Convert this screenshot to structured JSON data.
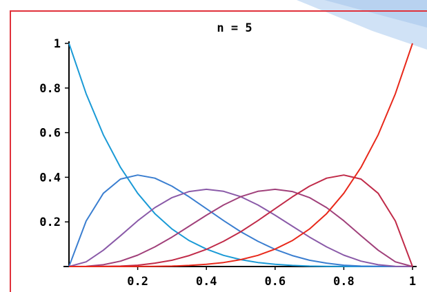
{
  "chart_data": {
    "type": "line",
    "title": "n = 5",
    "xlabel": "",
    "ylabel": "",
    "xlim": [
      0,
      1
    ],
    "ylim": [
      0,
      1
    ],
    "x_ticks": [
      0.2,
      0.4,
      0.6,
      0.8,
      1
    ],
    "x_tick_labels": [
      "0.2",
      "0.4",
      "0.6",
      "0.8",
      "1"
    ],
    "y_ticks": [
      0.2,
      0.4,
      0.6,
      0.8,
      1
    ],
    "y_tick_labels": [
      "0.2",
      "0.4",
      "0.6",
      "0.8",
      "1"
    ],
    "grid": false,
    "x": [
      0,
      0.05,
      0.1,
      0.15,
      0.2,
      0.25,
      0.3,
      0.35,
      0.4,
      0.45,
      0.5,
      0.55,
      0.6,
      0.65,
      0.7,
      0.75,
      0.8,
      0.85,
      0.9,
      0.95,
      1
    ],
    "series": [
      {
        "color": "#1a9ad6",
        "values": [
          1,
          0.774,
          0.59,
          0.444,
          0.328,
          0.237,
          0.168,
          0.116,
          0.078,
          0.05,
          0.031,
          0.018,
          0.01,
          0.005,
          0.002,
          0.001,
          0.0003,
          0.0001,
          0,
          0,
          0
        ]
      },
      {
        "color": "#3a7ed0",
        "values": [
          0,
          0.204,
          0.328,
          0.392,
          0.41,
          0.396,
          0.36,
          0.312,
          0.259,
          0.206,
          0.156,
          0.113,
          0.077,
          0.049,
          0.028,
          0.015,
          0.006,
          0.002,
          0.0005,
          0,
          0
        ]
      },
      {
        "color": "#8a5aa8",
        "values": [
          0,
          0.021,
          0.073,
          0.138,
          0.205,
          0.264,
          0.309,
          0.336,
          0.346,
          0.337,
          0.313,
          0.276,
          0.23,
          0.181,
          0.132,
          0.088,
          0.051,
          0.024,
          0.008,
          0.001,
          0
        ]
      },
      {
        "color": "#a0407a",
        "values": [
          0,
          0.001,
          0.008,
          0.024,
          0.051,
          0.088,
          0.132,
          0.181,
          0.23,
          0.276,
          0.313,
          0.337,
          0.346,
          0.336,
          0.309,
          0.264,
          0.205,
          0.138,
          0.073,
          0.021,
          0
        ]
      },
      {
        "color": "#c02a48",
        "values": [
          0,
          0,
          0.0005,
          0.002,
          0.006,
          0.015,
          0.028,
          0.049,
          0.077,
          0.113,
          0.156,
          0.206,
          0.259,
          0.312,
          0.36,
          0.396,
          0.41,
          0.392,
          0.328,
          0.204,
          0
        ]
      },
      {
        "color": "#e8281a",
        "values": [
          0,
          0,
          0,
          0.0001,
          0.0003,
          0.001,
          0.002,
          0.005,
          0.01,
          0.018,
          0.031,
          0.05,
          0.078,
          0.116,
          0.168,
          0.237,
          0.328,
          0.444,
          0.59,
          0.774,
          1
        ]
      }
    ]
  },
  "colors": {
    "frame": "#e0303a",
    "axis": "#000000",
    "decor": "#c8dcf2"
  }
}
